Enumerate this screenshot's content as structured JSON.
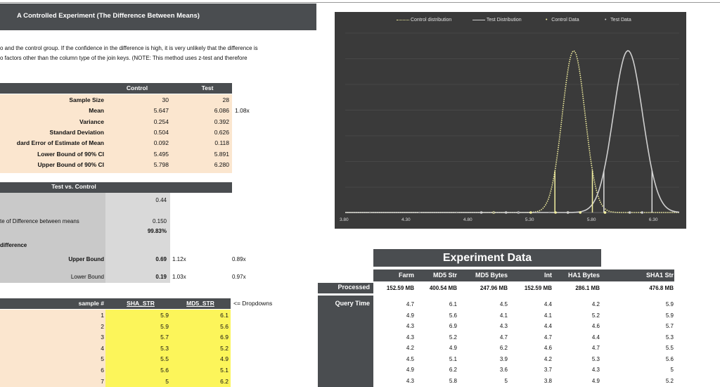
{
  "title": "A Controlled Experiment (The Difference Between Means)",
  "intro": {
    "line1": "o and the control group.  If the confidence in the difference is high, it is very unlikely that the difference is",
    "line2": "o factors other than the column type of the join keys.  (NOTE: This method uses z-test and therefore"
  },
  "stats": {
    "col_control": "Control",
    "col_test": "Test",
    "rows": [
      {
        "label": "Sample Size",
        "control": "30",
        "test": "28",
        "extra": ""
      },
      {
        "label": "Mean",
        "control": "5.647",
        "test": "6.086",
        "extra": "1.08x"
      },
      {
        "label": "Variance",
        "control": "0.254",
        "test": "0.392",
        "extra": ""
      },
      {
        "label": "Standard Deviation",
        "control": "0.504",
        "test": "0.626",
        "extra": ""
      },
      {
        "label": "dard Error of Estimate of Mean",
        "control": "0.092",
        "test": "0.118",
        "extra": ""
      },
      {
        "label": "Lower Bound of 90% CI",
        "control": "5.495",
        "test": "5.891",
        "extra": ""
      },
      {
        "label": "Upper Bound of 90% CI",
        "control": "5.798",
        "test": "6.280",
        "extra": ""
      }
    ]
  },
  "tvc": {
    "header": "Test vs. Control",
    "value1": "0.44",
    "se_label": "te of Difference between means",
    "se_value": "0.150",
    "confidence": "99.83%",
    "difference_label": "difference",
    "upper_label": "Upper Bound",
    "upper_value": "0.69",
    "upper_x1": "1.12x",
    "upper_x2": "0.89x",
    "lower_label": "Lower Bound",
    "lower_value": "0.19",
    "lower_x1": "1.03x",
    "lower_x2": "0.97x"
  },
  "samples": {
    "col_num": "sample #",
    "col_sha": "SHA_STR",
    "col_md5": "MD5_STR",
    "dropdown_note": "<= Dropdowns",
    "rows": [
      {
        "n": "1",
        "sha": "5.9",
        "md5": "6.1"
      },
      {
        "n": "2",
        "sha": "5.9",
        "md5": "5.6"
      },
      {
        "n": "3",
        "sha": "5.7",
        "md5": "6.9"
      },
      {
        "n": "4",
        "sha": "5.3",
        "md5": "5.2"
      },
      {
        "n": "5",
        "sha": "5.5",
        "md5": "4.9"
      },
      {
        "n": "6",
        "sha": "5.6",
        "md5": "5.1"
      },
      {
        "n": "7",
        "sha": "5",
        "md5": "6.2"
      }
    ]
  },
  "chart": {
    "legend": [
      "Control distribution",
      "Test Distribution",
      "Control Data",
      "Test Data"
    ],
    "colors": {
      "control": "#f4f0a0",
      "test": "#cfcfcf",
      "bg": "#3a3a3a"
    },
    "ticks": [
      "3.80",
      "4.30",
      "4.80",
      "5.30",
      "5.80",
      "6.30"
    ]
  },
  "chart_data": {
    "type": "line",
    "title": "",
    "xlim": [
      3.8,
      6.5
    ],
    "x_ticks": [
      "3.80",
      "4.30",
      "4.80",
      "5.30",
      "5.80",
      "6.30"
    ],
    "series": [
      {
        "name": "Control distribution",
        "mean": 5.647,
        "sd": 0.092
      },
      {
        "name": "Test Distribution",
        "mean": 6.086,
        "sd": 0.118
      },
      {
        "name": "Control Data",
        "values": [
          5.9,
          5.9,
          5.7,
          5.3,
          5.5,
          5.6,
          5.0
        ]
      },
      {
        "name": "Test Data",
        "values": [
          6.1,
          5.6,
          6.9,
          5.2,
          4.9,
          5.1,
          6.2
        ]
      }
    ],
    "vlines_control": [
      5.495,
      5.798
    ],
    "vlines_test": [
      5.891,
      6.28
    ]
  },
  "experiment": {
    "title": "Experiment Data",
    "columns": [
      "Farm",
      "MD5 Str",
      "MD5 Bytes",
      "Int",
      "HA1 Bytes",
      "SHA1 Str"
    ],
    "processed_label": "Processed",
    "processed": [
      "152.59 MB",
      "400.54 MB",
      "247.96 MB",
      "152.59 MB",
      "286.1 MB",
      "476.8 MB"
    ],
    "query_label": "Query Time",
    "rows": [
      [
        "4.7",
        "6.1",
        "4.5",
        "4.4",
        "4.2",
        "5.9"
      ],
      [
        "4.9",
        "5.6",
        "4.1",
        "4.1",
        "5.2",
        "5.9"
      ],
      [
        "4.3",
        "6.9",
        "4.3",
        "4.4",
        "4.6",
        "5.7"
      ],
      [
        "4.3",
        "5.2",
        "4.7",
        "4.7",
        "4.4",
        "5.3"
      ],
      [
        "4.2",
        "4.9",
        "6.2",
        "4.6",
        "4.7",
        "5.5"
      ],
      [
        "4.5",
        "5.1",
        "3.9",
        "4.2",
        "5.3",
        "5.6"
      ],
      [
        "4.9",
        "6.2",
        "3.6",
        "3.7",
        "4.3",
        "5"
      ],
      [
        "4.3",
        "5.8",
        "5",
        "3.8",
        "4.9",
        "5.2"
      ]
    ]
  }
}
